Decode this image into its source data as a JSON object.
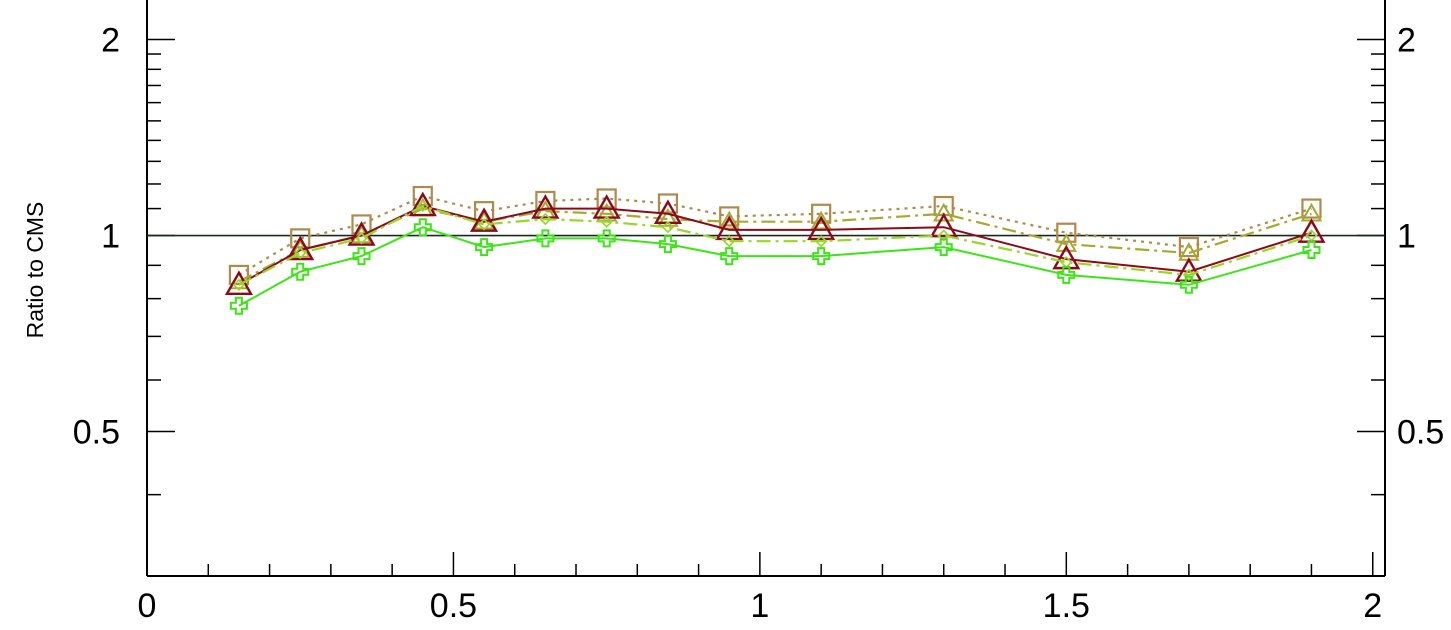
{
  "chart_data": {
    "type": "line",
    "title": "",
    "xlabel": "",
    "ylabel": "Ratio to CMS",
    "xlim": [
      0,
      2.02
    ],
    "ylim": [
      0.3,
      2.3
    ],
    "y_scale": "log",
    "x_ticks": [
      0,
      0.5,
      1,
      1.5,
      2
    ],
    "x_tick_labels": [
      "0",
      "0.5",
      "1",
      "1.5",
      "2"
    ],
    "y_ticks": [
      0.5,
      1,
      2
    ],
    "y_tick_labels": [
      "0.5",
      "1",
      "2"
    ],
    "reference_line": 1,
    "grid": false,
    "legend": "none",
    "x": [
      0.15,
      0.25,
      0.35,
      0.45,
      0.55,
      0.65,
      0.75,
      0.85,
      0.95,
      1.1,
      1.3,
      1.5,
      1.7,
      1.9
    ],
    "series": [
      {
        "color": "#b08a4a",
        "line": "dotted",
        "marker": "open-square",
        "values": [
          0.87,
          0.99,
          1.04,
          1.15,
          1.09,
          1.13,
          1.14,
          1.12,
          1.07,
          1.08,
          1.11,
          1.01,
          0.96,
          1.1
        ]
      },
      {
        "color": "#a8a830",
        "line": "dashdot",
        "marker": "open-triangle",
        "values": [
          0.85,
          0.95,
          1.0,
          1.1,
          1.05,
          1.09,
          1.08,
          1.06,
          1.05,
          1.05,
          1.08,
          0.97,
          0.94,
          1.08
        ]
      },
      {
        "color": "#8a0a1a",
        "line": "solid",
        "marker": "open-triangle",
        "values": [
          0.84,
          0.95,
          1.0,
          1.11,
          1.05,
          1.1,
          1.1,
          1.08,
          1.02,
          1.02,
          1.03,
          0.92,
          0.88,
          1.01
        ]
      },
      {
        "color": "#9ad628",
        "line": "dashdot",
        "marker": "open-diamond",
        "values": [
          0.84,
          0.94,
          0.99,
          1.11,
          1.04,
          1.06,
          1.05,
          1.03,
          0.98,
          0.98,
          1.0,
          0.91,
          0.87,
          1.0
        ]
      },
      {
        "color": "#3ce616",
        "line": "solid",
        "marker": "open-cross",
        "values": [
          0.78,
          0.88,
          0.93,
          1.03,
          0.96,
          0.99,
          0.99,
          0.97,
          0.93,
          0.93,
          0.96,
          0.87,
          0.84,
          0.95
        ]
      }
    ]
  }
}
